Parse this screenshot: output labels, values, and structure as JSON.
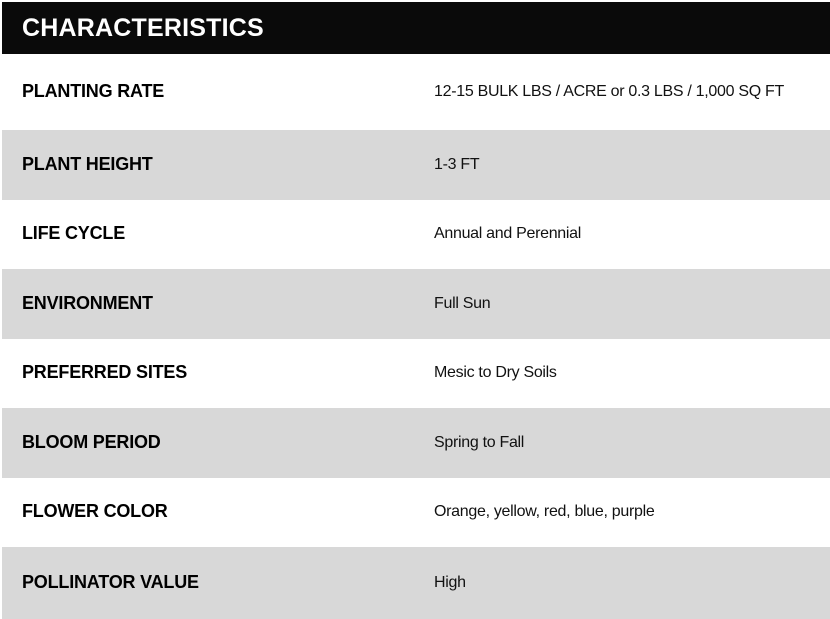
{
  "colors": {
    "header_bg": "#0a0a0a",
    "header_text": "#ffffff",
    "row_bg_white": "#ffffff",
    "row_bg_gray": "#d8d8d8",
    "label_text": "#000000",
    "value_text": "#111111"
  },
  "table": {
    "header": "CHARACTERISTICS",
    "rows": [
      {
        "label": "PLANTING RATE",
        "value": "12-15 BULK LBS / ACRE or 0.3 LBS / 1,000 SQ FT"
      },
      {
        "label": "PLANT HEIGHT",
        "value": "1-3 FT"
      },
      {
        "label": "LIFE CYCLE",
        "value": "Annual and Perennial"
      },
      {
        "label": "ENVIRONMENT",
        "value": "Full Sun"
      },
      {
        "label": "PREFERRED SITES",
        "value": "Mesic to Dry Soils"
      },
      {
        "label": "BLOOM PERIOD",
        "value": "Spring to Fall"
      },
      {
        "label": "FLOWER COLOR",
        "value": "Orange, yellow, red, blue, purple"
      },
      {
        "label": "POLLINATOR VALUE",
        "value": "High"
      }
    ]
  }
}
